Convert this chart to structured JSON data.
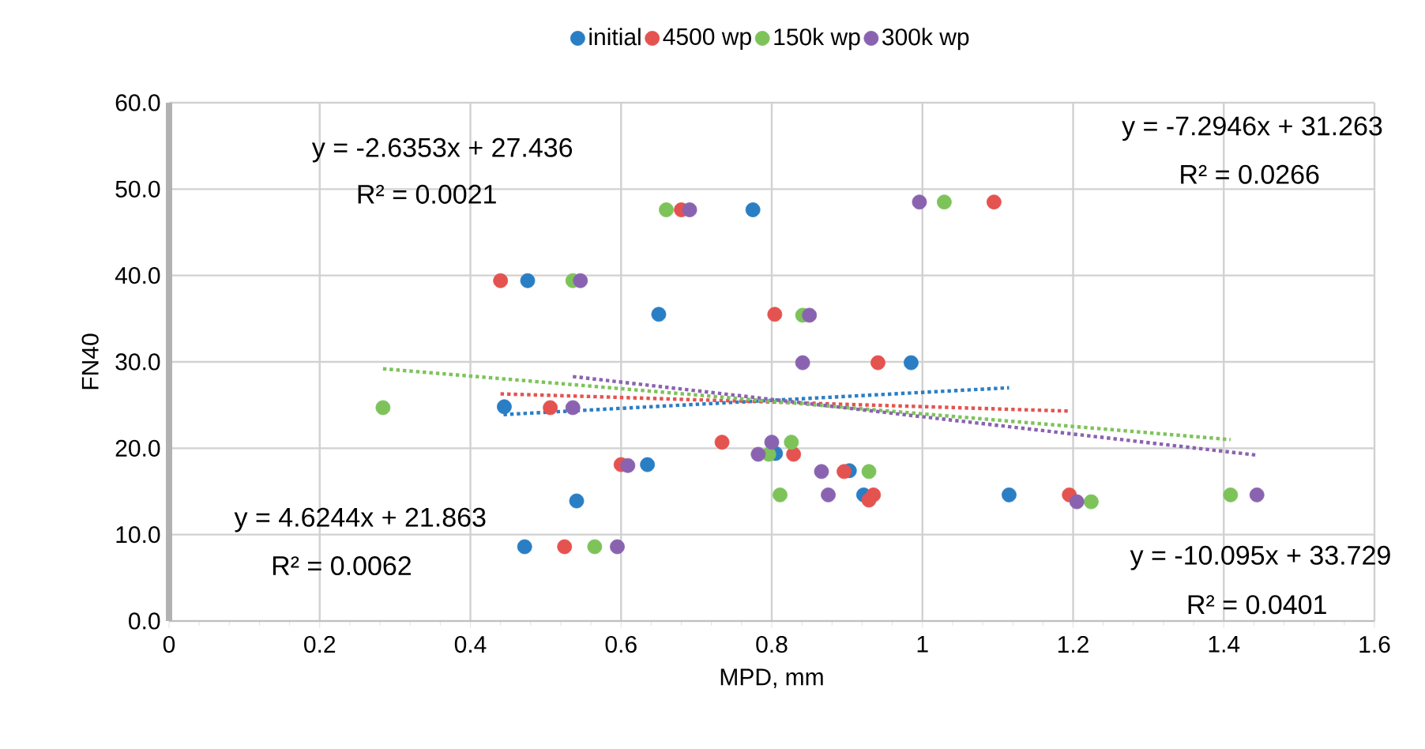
{
  "chart_data": {
    "type": "scatter",
    "xlabel": "MPD, mm",
    "ylabel": "FN40",
    "xlim": [
      0,
      1.6
    ],
    "ylim": [
      0,
      60
    ],
    "xticks": [
      0,
      0.2,
      0.4,
      0.6,
      0.8,
      1,
      1.2,
      1.4,
      1.6
    ],
    "yticks": [
      {
        "value": 0,
        "label": "0.0"
      },
      {
        "value": 10,
        "label": "10.0"
      },
      {
        "value": 20,
        "label": "20.0"
      },
      {
        "value": 30,
        "label": "30.0"
      },
      {
        "value": 40,
        "label": "40.0"
      },
      {
        "value": 50,
        "label": "50.0"
      },
      {
        "value": 60,
        "label": "60.0"
      }
    ],
    "grid": true,
    "legend": "top",
    "marker": "circle",
    "series": [
      {
        "name": "initial",
        "color": "#2a7ec4",
        "x": [
          0.445,
          0.476,
          0.65,
          0.775,
          0.635,
          0.541,
          0.472,
          0.805,
          0.985,
          0.903,
          0.922,
          1.115
        ],
        "values": [
          24.8,
          39.4,
          35.5,
          47.6,
          18.1,
          13.9,
          8.6,
          19.4,
          29.9,
          17.4,
          14.6,
          14.6
        ]
      },
      {
        "name": "4500 wp",
        "color": "#e4534f",
        "x": [
          0.44,
          0.506,
          0.68,
          0.6,
          0.525,
          0.804,
          0.734,
          0.829,
          0.941,
          0.896,
          0.935,
          0.929,
          1.095,
          1.195
        ],
        "values": [
          39.4,
          24.7,
          47.6,
          18.1,
          8.6,
          35.5,
          20.7,
          19.3,
          29.9,
          17.3,
          14.6,
          14.0,
          48.5,
          14.6
        ]
      },
      {
        "name": "150k wp",
        "color": "#7dc35a",
        "x": [
          0.284,
          0.66,
          0.536,
          0.565,
          0.811,
          0.796,
          0.826,
          0.841,
          0.929,
          1.029,
          1.224,
          1.409
        ],
        "values": [
          24.7,
          47.6,
          39.4,
          8.6,
          14.6,
          19.3,
          20.7,
          35.4,
          17.3,
          48.5,
          13.8,
          14.6
        ]
      },
      {
        "name": "300k wp",
        "color": "#8a63b0",
        "x": [
          0.536,
          0.546,
          0.691,
          0.609,
          0.595,
          0.782,
          0.8,
          0.85,
          0.841,
          0.866,
          0.875,
          0.996,
          1.205,
          1.444
        ],
        "values": [
          24.7,
          39.4,
          47.6,
          18.0,
          8.6,
          19.3,
          20.7,
          35.4,
          29.9,
          17.3,
          14.6,
          48.5,
          13.8,
          14.6
        ]
      },
      {
        "type": "line",
        "color": "#2a7ec4",
        "line_style": "dotted",
        "marker": "none",
        "x": [
          0.444,
          1.115
        ],
        "values": [
          23.9,
          27.0
        ]
      },
      {
        "type": "line",
        "color": "#e4534f",
        "line_style": "dotted",
        "marker": "none",
        "x": [
          0.44,
          1.195
        ],
        "values": [
          26.3,
          24.3
        ]
      },
      {
        "type": "line",
        "color": "#7dc35a",
        "line_style": "dotted",
        "marker": "none",
        "x": [
          0.284,
          1.409
        ],
        "values": [
          29.2,
          21.0
        ]
      },
      {
        "type": "line",
        "color": "#8a63b0",
        "line_style": "dotted",
        "marker": "none",
        "x": [
          0.536,
          1.444
        ],
        "values": [
          28.3,
          19.2
        ]
      }
    ],
    "annotations": [
      "y = -2.6353x + 27.436",
      "R² = 0.0021",
      "y = -7.2946x + 31.263",
      "R² = 0.0266",
      "y = 4.6244x + 21.863",
      "R² = 0.0062",
      "y = -10.095x + 33.729",
      "R² = 0.0401"
    ]
  }
}
